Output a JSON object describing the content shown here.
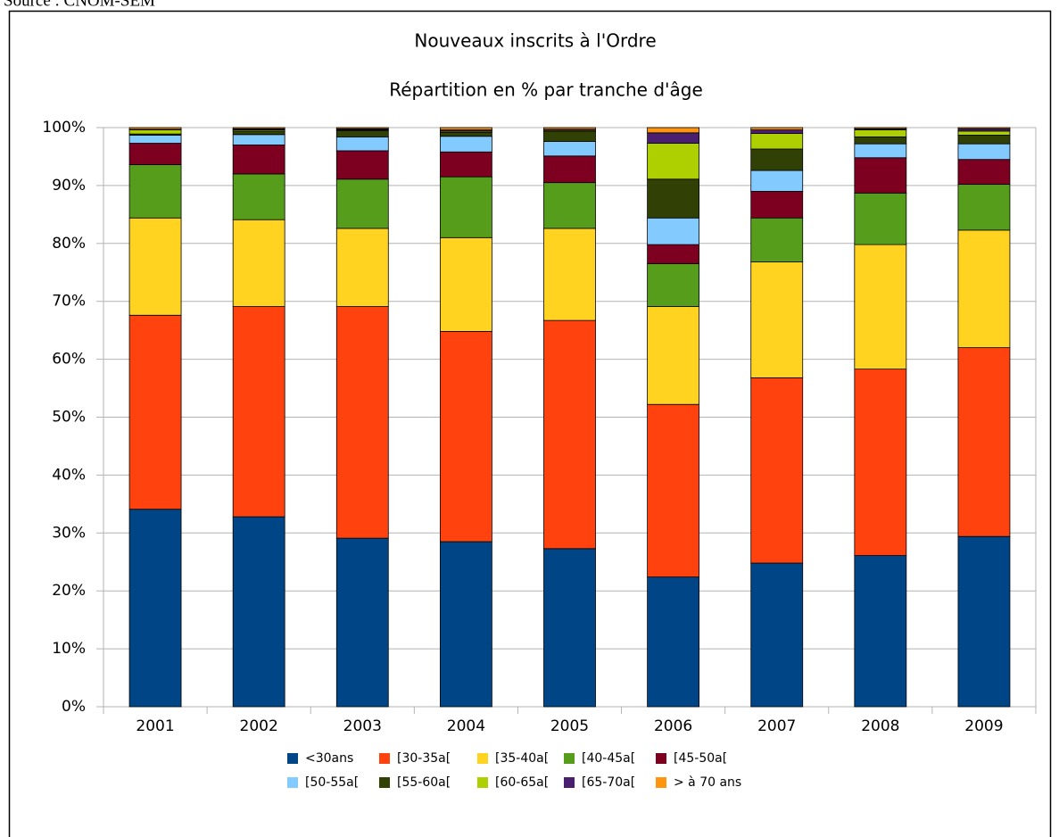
{
  "source": "Source : CNOM-SEM",
  "chart_data": {
    "type": "stacked_bar",
    "title": "Nouveaux inscrits à l'Ordre",
    "subtitle": "Répartition en % par tranche d'âge",
    "categories": [
      "2001",
      "2002",
      "2003",
      "2004",
      "2005",
      "2006",
      "2007",
      "2008",
      "2009"
    ],
    "series": [
      {
        "name": "<30ans",
        "color": "#004586",
        "values": [
          34.1,
          32.8,
          29.1,
          28.5,
          27.3,
          22.4,
          24.8,
          26.1,
          29.4
        ]
      },
      {
        "name": "[30-35a[",
        "color": "#ff420e",
        "values": [
          33.5,
          36.3,
          40.0,
          36.3,
          39.4,
          29.8,
          32.0,
          32.2,
          32.6
        ]
      },
      {
        "name": "[35-40a[",
        "color": "#ffd320",
        "values": [
          16.8,
          15.0,
          13.5,
          16.2,
          15.9,
          16.9,
          20.0,
          21.5,
          20.3
        ]
      },
      {
        "name": "[40-45a[",
        "color": "#579d1c",
        "values": [
          9.2,
          7.9,
          8.5,
          10.5,
          7.9,
          7.4,
          7.6,
          8.9,
          7.9
        ]
      },
      {
        "name": "[45-50a[",
        "color": "#7e0021",
        "values": [
          3.7,
          5.0,
          4.9,
          4.3,
          4.6,
          3.3,
          4.6,
          6.1,
          4.3
        ]
      },
      {
        "name": "[50-55a[",
        "color": "#83caff",
        "values": [
          1.4,
          1.8,
          2.4,
          2.7,
          2.5,
          4.6,
          3.6,
          2.4,
          2.7
        ]
      },
      {
        "name": "[55-60a[",
        "color": "#314004",
        "values": [
          0.2,
          0.6,
          1.1,
          0.7,
          1.7,
          6.7,
          3.7,
          1.2,
          1.5
        ]
      },
      {
        "name": "[60-65a[",
        "color": "#aecf00",
        "values": [
          0.7,
          0.2,
          0.1,
          0.2,
          0.2,
          6.2,
          2.7,
          1.2,
          0.7
        ]
      },
      {
        "name": "[65-70a[",
        "color": "#4b1f6f",
        "values": [
          0.1,
          0.2,
          0.2,
          0.2,
          0.2,
          1.8,
          0.6,
          0.2,
          0.4
        ]
      },
      {
        "name": "> à 70 ans",
        "color": "#ff950e",
        "values": [
          0.3,
          0.2,
          0.2,
          0.4,
          0.3,
          0.9,
          0.4,
          0.2,
          0.2
        ]
      }
    ],
    "ylim": [
      0,
      100
    ],
    "yticks": [
      {
        "value": 0,
        "label": "0%"
      },
      {
        "value": 10,
        "label": "10%"
      },
      {
        "value": 20,
        "label": "20%"
      },
      {
        "value": 30,
        "label": "30%"
      },
      {
        "value": 40,
        "label": "40%"
      },
      {
        "value": 50,
        "label": "50%"
      },
      {
        "value": 60,
        "label": "60%"
      },
      {
        "value": 70,
        "label": "70%"
      },
      {
        "value": 80,
        "label": "80%"
      },
      {
        "value": 90,
        "label": "90%"
      },
      {
        "value": 100,
        "label": "100%"
      }
    ],
    "grid": true,
    "legend": "bottom"
  }
}
